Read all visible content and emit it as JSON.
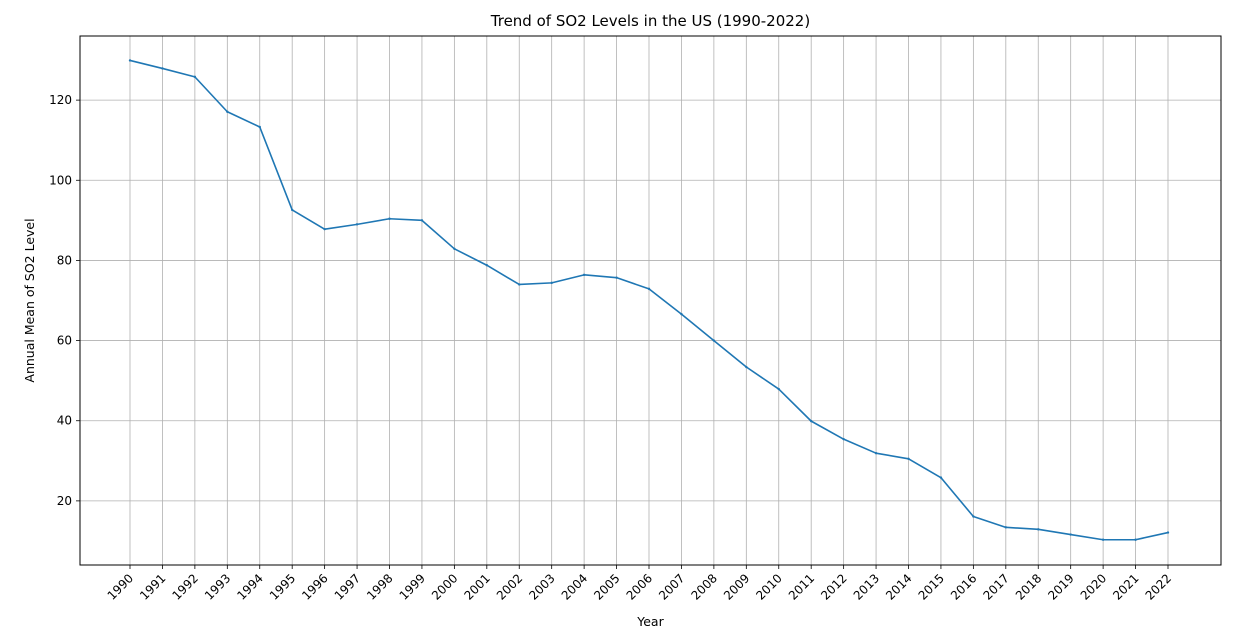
{
  "chart_data": {
    "type": "line",
    "title": "Trend of SO2 Levels in the US (1990-2022)",
    "xlabel": "Year",
    "ylabel": "Annual Mean of SO2 Level",
    "grid": true,
    "ylim": [
      4.0,
      136.0
    ],
    "yticks": [
      20,
      40,
      60,
      80,
      100,
      120
    ],
    "x": [
      1990,
      1991,
      1992,
      1993,
      1994,
      1995,
      1996,
      1997,
      1998,
      1999,
      2000,
      2001,
      2002,
      2003,
      2004,
      2005,
      2006,
      2007,
      2008,
      2009,
      2010,
      2011,
      2012,
      2013,
      2014,
      2015,
      2016,
      2017,
      2018,
      2019,
      2020,
      2021,
      2022
    ],
    "series": [
      {
        "color": "#1f77b4",
        "values": [
          129.9,
          127.9,
          125.8,
          117.1,
          113.3,
          92.6,
          87.8,
          89.0,
          90.4,
          90.0,
          82.9,
          78.8,
          74.0,
          74.4,
          76.4,
          75.7,
          72.9,
          66.6,
          60.0,
          53.4,
          47.9,
          39.9,
          35.4,
          31.9,
          30.5,
          25.8,
          16.1,
          13.4,
          12.9,
          11.6,
          10.3,
          10.3,
          12.1
        ]
      }
    ]
  }
}
